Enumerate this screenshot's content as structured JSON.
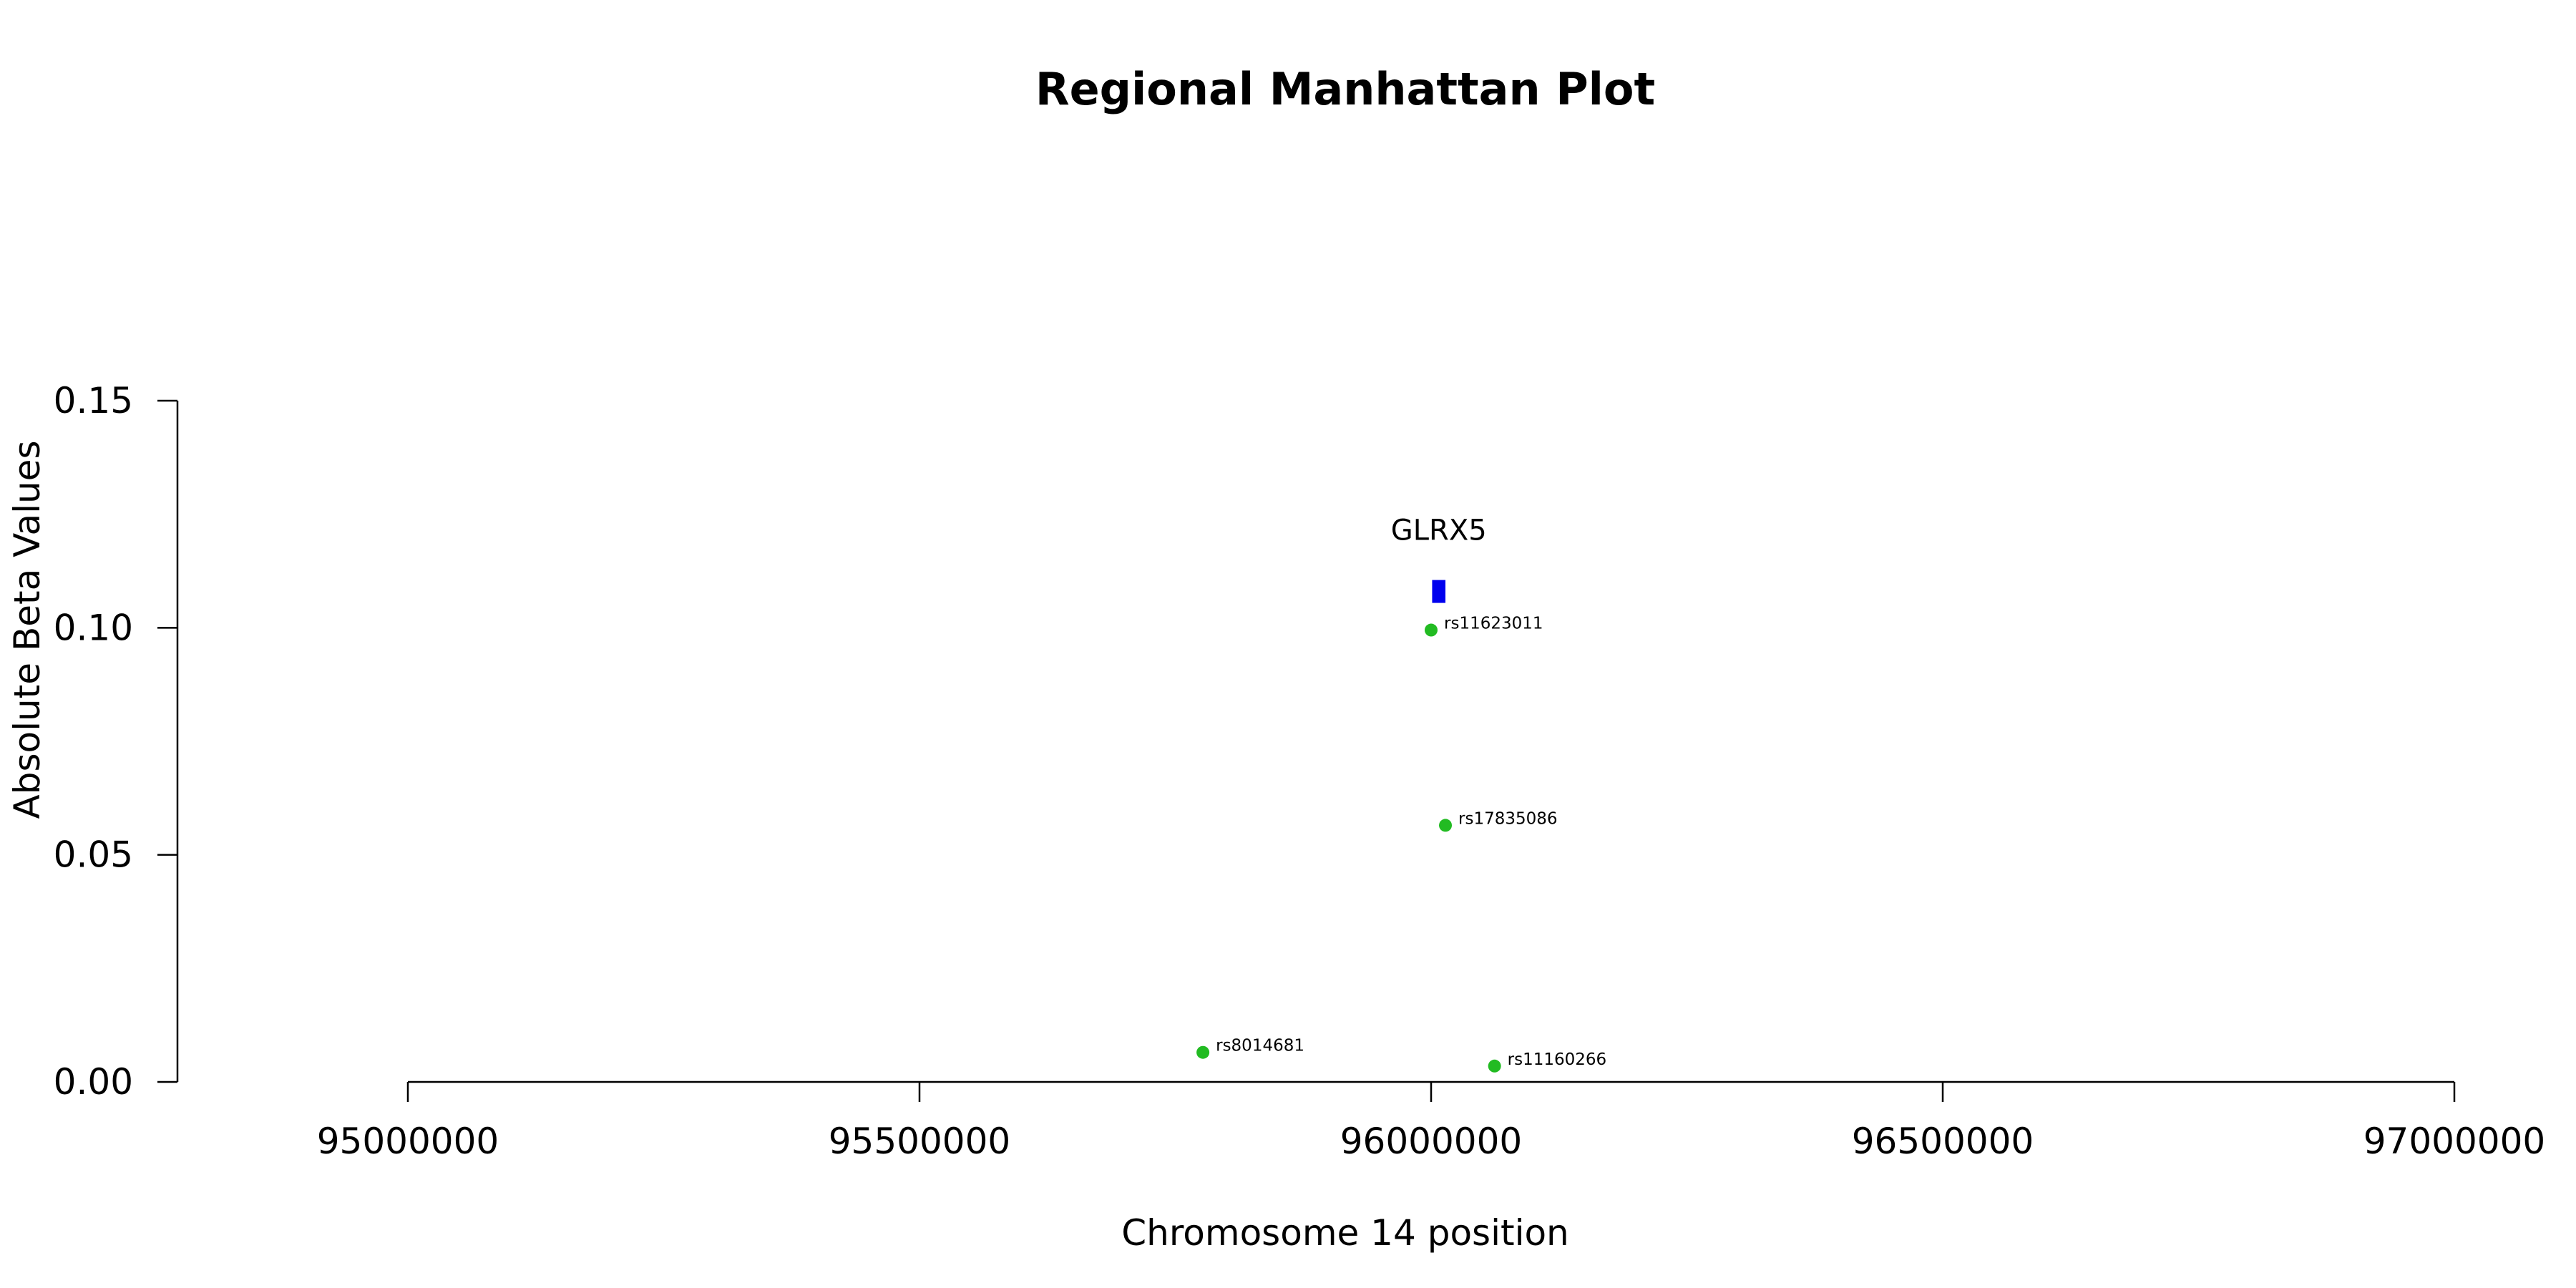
{
  "chart_data": {
    "type": "scatter",
    "title": "Regional Manhattan Plot",
    "xlabel": "Chromosome 14 position",
    "ylabel": "Absolute Beta Values",
    "xlim": [
      95000000,
      97000000
    ],
    "ylim": [
      0,
      0.15
    ],
    "x_ticks": [
      "95000000",
      "95500000",
      "96000000",
      "96500000",
      "97000000"
    ],
    "y_ticks": [
      "0.00",
      "0.05",
      "0.10",
      "0.15"
    ],
    "point_color": "#22bb22",
    "gene_color": "#0000ee",
    "grid": false,
    "points": [
      {
        "label": "rs11623011",
        "x": 96000000,
        "y": 0.0995
      },
      {
        "label": "rs17835086",
        "x": 96014000,
        "y": 0.0565
      },
      {
        "label": "rs8014681",
        "x": 95777000,
        "y": 0.0065
      },
      {
        "label": "rs11160266",
        "x": 96062000,
        "y": 0.0035
      }
    ],
    "genes": [
      {
        "name": "GLRX5",
        "start": 96001000,
        "end": 96014000,
        "y": 0.108
      }
    ]
  }
}
